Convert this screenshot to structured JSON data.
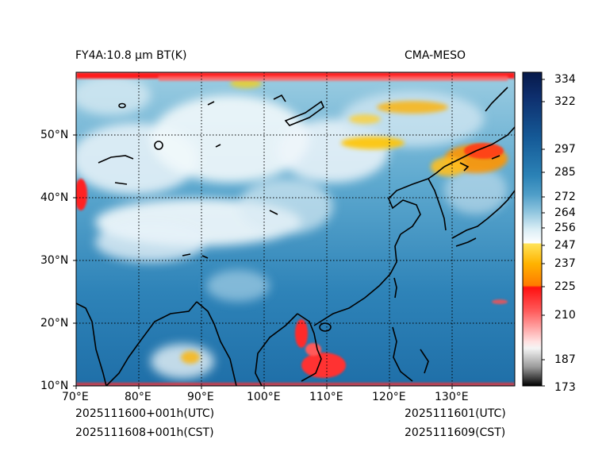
{
  "header": {
    "title_left": "FY4A:10.8 μm BT(K)",
    "title_right": "CMA-MESO"
  },
  "map": {
    "lon_ticks": [
      "70°E",
      "80°E",
      "90°E",
      "100°E",
      "110°E",
      "120°E",
      "130°E"
    ],
    "lat_ticks": [
      "10°N",
      "20°N",
      "30°N",
      "40°N",
      "50°N"
    ],
    "lon_range": [
      70,
      140
    ],
    "lat_range": [
      10,
      60
    ]
  },
  "colorbar": {
    "labels": [
      "334",
      "322",
      "297",
      "285",
      "272",
      "264",
      "256",
      "247",
      "237",
      "225",
      "210",
      "187",
      "173"
    ],
    "range": [
      173,
      337
    ],
    "colors": {
      "cold": "#000000",
      "gray": "#cccccc",
      "red_light": "#ffd0d0",
      "red": "#ff1010",
      "orange": "#ff9a00",
      "yellow": "#ffe240",
      "white": "#ffffff",
      "light_blue": "#bfe0ee",
      "mid_blue": "#3a90bd",
      "deep_blue": "#1a5fa0",
      "navy": "#071a4a"
    }
  },
  "footer": {
    "left_line1": "2025111600+001h(UTC)",
    "left_line2": "2025111608+001h(CST)",
    "right_line1": "2025111601(UTC)",
    "right_line2": "2025111609(CST)"
  }
}
